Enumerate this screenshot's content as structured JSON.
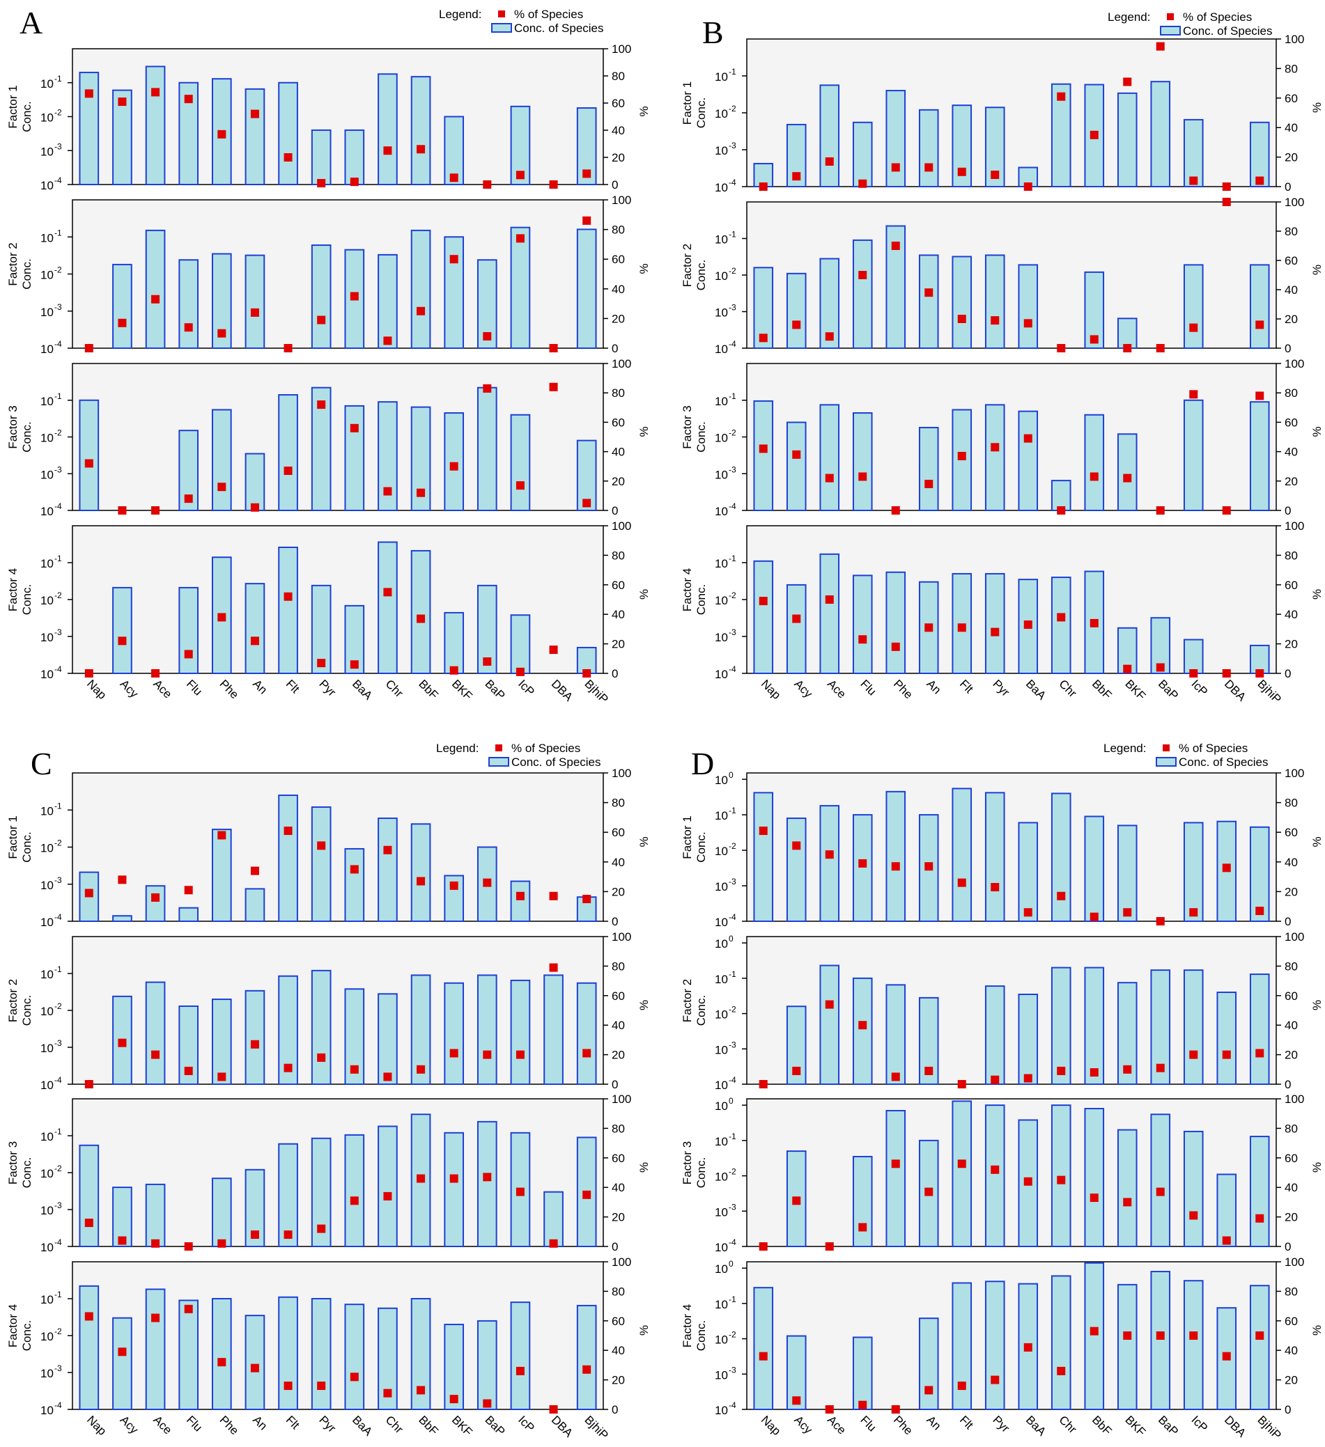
{
  "chart_data": [
    {
      "type": "bar",
      "panel_label": "A",
      "legend": {
        "title": "Legend:",
        "items": [
          "% of Species",
          "Conc. of Species"
        ]
      },
      "categories": [
        "Nap",
        "Acy",
        "Ace",
        "Flu",
        "Phe",
        "An",
        "Flt",
        "Pyr",
        "BaA",
        "Chr",
        "BbF",
        "BKF",
        "BaP",
        "IcP",
        "DBA",
        "BjhiP"
      ],
      "left_axis": {
        "scale": "log",
        "ylim": [
          0.0001,
          1
        ],
        "ticks": [
          -4,
          -3,
          -2,
          -1
        ],
        "top_tick": null
      },
      "right_axis": {
        "label": "%",
        "ylim": [
          0,
          100
        ],
        "ticks": [
          "0",
          "20",
          "40",
          "60",
          "80",
          "100"
        ]
      },
      "series_styles": {
        "bar_fill": "#b0e0e6",
        "bar_stroke": "#1f3fd4",
        "marker": "#e00000"
      },
      "factors": [
        {
          "label": "Factor 1",
          "sublabel": "Conc.",
          "conc": [
            0.2,
            0.06,
            0.3,
            0.1,
            0.13,
            0.065,
            0.1,
            0.004,
            0.004,
            0.18,
            0.15,
            0.01,
            null,
            0.02,
            null,
            0.018
          ],
          "percent": [
            67,
            61,
            68,
            63,
            37,
            52,
            20,
            1,
            2,
            25,
            26,
            5,
            0,
            7,
            0,
            8
          ]
        },
        {
          "label": "Factor 2",
          "sublabel": "Conc.",
          "conc": [
            null,
            0.018,
            0.15,
            0.024,
            0.035,
            0.032,
            null,
            0.06,
            0.045,
            0.033,
            0.15,
            0.1,
            0.024,
            0.18,
            null,
            0.16
          ],
          "percent": [
            0,
            17,
            33,
            14,
            10,
            24,
            0,
            19,
            35,
            5,
            25,
            60,
            8,
            74,
            0,
            86
          ]
        },
        {
          "label": "Factor 3",
          "sublabel": "Conc.",
          "conc": [
            0.1,
            null,
            null,
            0.015,
            0.055,
            0.0035,
            0.14,
            0.22,
            0.07,
            0.09,
            0.065,
            0.045,
            0.22,
            0.04,
            null,
            0.008
          ],
          "percent": [
            32,
            0,
            0,
            8,
            16,
            2,
            27,
            72,
            56,
            13,
            12,
            30,
            83,
            17,
            84,
            5
          ]
        },
        {
          "label": "Factor 4",
          "sublabel": "Conc.",
          "conc": [
            null,
            0.021,
            null,
            0.021,
            0.14,
            0.027,
            0.26,
            0.024,
            0.0068,
            0.36,
            0.21,
            0.0044,
            0.024,
            0.0038,
            null,
            0.0005
          ],
          "percent": [
            0,
            22,
            0,
            13,
            38,
            22,
            52,
            7,
            6,
            55,
            37,
            2,
            8,
            1,
            16,
            0
          ]
        }
      ]
    },
    {
      "type": "bar",
      "panel_label": "B",
      "legend": {
        "title": "Legend:",
        "items": [
          "% of Species",
          "Conc. of Species"
        ]
      },
      "categories": [
        "Nap",
        "Acy",
        "Ace",
        "Flu",
        "Phe",
        "An",
        "Flt",
        "Pyr",
        "BaA",
        "Chr",
        "BbF",
        "BKF",
        "BaP",
        "IcP",
        "DBA",
        "BjhiP"
      ],
      "left_axis": {
        "scale": "log",
        "ylim": [
          0.0001,
          1
        ],
        "ticks": [
          -4,
          -3,
          -2,
          -1
        ],
        "top_tick": null
      },
      "right_axis": {
        "label": "%",
        "ylim": [
          0,
          100
        ],
        "ticks": [
          "0",
          "20",
          "40",
          "60",
          "80",
          "100"
        ]
      },
      "series_styles": {
        "bar_fill": "#b0e0e6",
        "bar_stroke": "#1f3fd4",
        "marker": "#e00000"
      },
      "factors": [
        {
          "label": "Factor 1",
          "sublabel": "Conc.",
          "conc": [
            0.00042,
            0.0048,
            0.056,
            0.0055,
            0.04,
            0.012,
            0.016,
            0.014,
            0.00033,
            0.06,
            0.058,
            0.034,
            0.07,
            0.0065,
            null,
            0.0055
          ],
          "percent": [
            0,
            7,
            17,
            2,
            13,
            13,
            10,
            8,
            0,
            61,
            35,
            71,
            95,
            4,
            0,
            4
          ]
        },
        {
          "label": "Factor 2",
          "sublabel": "Conc.",
          "conc": [
            0.016,
            0.011,
            0.028,
            0.09,
            0.22,
            0.035,
            0.032,
            0.035,
            0.019,
            null,
            0.012,
            0.00065,
            null,
            0.019,
            null,
            0.019
          ],
          "percent": [
            7,
            16,
            8,
            50,
            70,
            38,
            20,
            19,
            17,
            0,
            6,
            0,
            0,
            14,
            100,
            16
          ]
        },
        {
          "label": "Factor 3",
          "sublabel": "Conc.",
          "conc": [
            0.095,
            0.025,
            0.075,
            0.045,
            null,
            0.018,
            0.055,
            0.075,
            0.05,
            0.00065,
            0.04,
            0.012,
            null,
            0.1,
            null,
            0.09
          ],
          "percent": [
            42,
            38,
            22,
            23,
            0,
            18,
            37,
            43,
            49,
            0,
            23,
            22,
            0,
            79,
            0,
            78
          ]
        },
        {
          "label": "Factor 4",
          "sublabel": "Conc.",
          "conc": [
            0.11,
            0.025,
            0.17,
            0.045,
            0.055,
            0.03,
            0.05,
            0.05,
            0.035,
            0.04,
            0.058,
            0.0017,
            0.0032,
            0.00082,
            null,
            0.00057
          ],
          "percent": [
            49,
            37,
            50,
            23,
            18,
            31,
            31,
            28,
            33,
            38,
            34,
            3,
            4,
            0,
            0,
            0
          ]
        }
      ]
    },
    {
      "type": "bar",
      "panel_label": "C",
      "legend": {
        "title": "Legend:",
        "items": [
          "% of Species",
          "Conc. of Species"
        ]
      },
      "categories": [
        "Nap",
        "Acy",
        "Ace",
        "Flu",
        "Phe",
        "An",
        "Flt",
        "Pyr",
        "BaA",
        "Chr",
        "BbF",
        "BKF",
        "BaP",
        "IcP",
        "DBA",
        "BjhiP"
      ],
      "left_axis": {
        "scale": "log",
        "ylim": [
          0.0001,
          1
        ],
        "ticks": [
          -4,
          -3,
          -2,
          -1
        ],
        "top_tick": null
      },
      "right_axis": {
        "label": "%",
        "ylim": [
          0,
          100
        ],
        "ticks": [
          "0",
          "20",
          "40",
          "60",
          "80",
          "100"
        ]
      },
      "series_styles": {
        "bar_fill": "#b0e0e6",
        "bar_stroke": "#1f3fd4",
        "marker": "#e00000"
      },
      "factors": [
        {
          "label": "Factor 1",
          "sublabel": "Conc.",
          "conc": [
            0.0021,
            0.00014,
            0.0009,
            0.00023,
            0.03,
            0.00075,
            0.25,
            0.12,
            0.009,
            0.06,
            0.042,
            0.0017,
            0.01,
            0.0012,
            null,
            0.00045
          ],
          "percent": [
            19,
            28,
            16,
            21,
            58,
            34,
            61,
            51,
            35,
            48,
            27,
            24,
            26,
            17,
            17,
            15
          ]
        },
        {
          "label": "Factor 2",
          "sublabel": "Conc.",
          "conc": [
            null,
            0.024,
            0.058,
            0.013,
            0.02,
            0.034,
            0.085,
            0.12,
            0.038,
            0.028,
            0.09,
            0.055,
            0.09,
            0.065,
            0.09,
            0.055
          ],
          "percent": [
            0,
            28,
            20,
            9,
            5,
            27,
            11,
            18,
            10,
            5,
            10,
            21,
            20,
            20,
            79,
            21
          ]
        },
        {
          "label": "Factor 3",
          "sublabel": "Conc.",
          "conc": [
            0.055,
            0.004,
            0.0048,
            null,
            0.007,
            0.012,
            0.06,
            0.085,
            0.105,
            0.18,
            0.38,
            0.12,
            0.24,
            0.12,
            0.003,
            0.09
          ],
          "percent": [
            16,
            4,
            2,
            0,
            2,
            8,
            8,
            12,
            31,
            34,
            46,
            46,
            47,
            37,
            2,
            35
          ]
        },
        {
          "label": "Factor 4",
          "sublabel": "Conc.",
          "conc": [
            0.22,
            0.03,
            0.18,
            0.09,
            0.1,
            0.035,
            0.11,
            0.1,
            0.07,
            0.055,
            0.1,
            0.02,
            0.025,
            0.08,
            null,
            0.065
          ],
          "percent": [
            63,
            39,
            62,
            68,
            32,
            28,
            16,
            16,
            22,
            11,
            13,
            7,
            4,
            26,
            0,
            27
          ]
        }
      ]
    },
    {
      "type": "bar",
      "panel_label": "D",
      "legend": {
        "title": "Legend:",
        "items": [
          "% of Species",
          "Conc. of Species"
        ]
      },
      "categories": [
        "Nap",
        "Acy",
        "Ace",
        "Flu",
        "Phe",
        "An",
        "Flt",
        "Pyr",
        "BaA",
        "Chr",
        "BbF",
        "BKF",
        "BaP",
        "IcP",
        "DBA",
        "BjhiP"
      ],
      "left_axis": {
        "scale": "log",
        "ylim": [
          0.0001,
          1.5
        ],
        "ticks": [
          -4,
          -3,
          -2,
          -1,
          0
        ],
        "top_tick": 0
      },
      "right_axis": {
        "label": "%",
        "ylim": [
          0,
          100
        ],
        "ticks": [
          "0",
          "20",
          "40",
          "60",
          "80",
          "100"
        ]
      },
      "series_styles": {
        "bar_fill": "#b0e0e6",
        "bar_stroke": "#1f3fd4",
        "marker": "#e00000"
      },
      "factors": [
        {
          "label": "Factor 1",
          "sublabel": "Conc.",
          "conc": [
            0.42,
            0.08,
            0.18,
            0.1,
            0.45,
            0.1,
            0.55,
            0.42,
            0.06,
            0.4,
            0.09,
            0.05,
            null,
            0.06,
            0.065,
            0.045
          ],
          "percent": [
            61,
            51,
            45,
            39,
            37,
            37,
            26,
            23,
            6,
            17,
            3,
            6,
            0,
            6,
            36,
            7
          ]
        },
        {
          "label": "Factor 2",
          "sublabel": "Conc.",
          "conc": [
            null,
            0.016,
            0.23,
            0.1,
            0.065,
            0.028,
            null,
            0.06,
            0.035,
            0.2,
            0.2,
            0.075,
            0.17,
            0.17,
            0.04,
            0.13
          ],
          "percent": [
            0,
            9,
            54,
            40,
            5,
            9,
            0,
            3,
            4,
            9,
            8,
            10,
            11,
            20,
            20,
            21
          ]
        },
        {
          "label": "Factor 3",
          "sublabel": "Conc.",
          "conc": [
            null,
            0.05,
            null,
            0.035,
            0.7,
            0.1,
            1.3,
            1.0,
            0.38,
            1.0,
            0.8,
            0.2,
            0.55,
            0.18,
            0.011,
            0.13
          ],
          "percent": [
            0,
            31,
            0,
            13,
            56,
            37,
            56,
            52,
            44,
            45,
            33,
            30,
            37,
            21,
            4,
            19
          ]
        },
        {
          "label": "Factor 4",
          "sublabel": "Conc.",
          "conc": [
            0.28,
            0.012,
            null,
            0.011,
            null,
            0.038,
            0.38,
            0.42,
            0.36,
            0.6,
            1.4,
            0.34,
            0.8,
            0.44,
            0.075,
            0.32
          ],
          "percent": [
            36,
            6,
            0,
            3,
            0,
            13,
            16,
            20,
            42,
            26,
            53,
            50,
            50,
            50,
            36,
            50
          ]
        }
      ]
    }
  ]
}
